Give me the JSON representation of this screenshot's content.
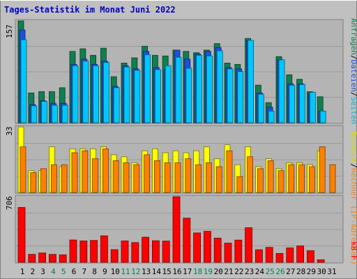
{
  "title": "Tages-Statistik im Monat Juni 2022",
  "colors": {
    "panel_bg": "#c0c0c0",
    "plot_bg": "#b4b4b4",
    "title": "#0000c0",
    "anfragen": "#0f7f4f",
    "dateien": "#1f4fdf",
    "seiten": "#00c8ff",
    "besuche": "#ffff00",
    "rechner": "#ff8000",
    "kbf": "#ff0000",
    "weekend": "#00805a",
    "weekday": "#000000"
  },
  "legend": {
    "top_parts": [
      {
        "text": "Anfragen",
        "color": "#0f7f4f"
      },
      {
        "text": "/",
        "color": "#000000"
      },
      {
        "text": "Dateien",
        "color": "#1f4fdf"
      },
      {
        "text": "/",
        "color": "#000000"
      },
      {
        "text": "Seiten",
        "color": "#00b0e0"
      }
    ],
    "mid_parts": [
      {
        "text": "Besuche",
        "color": "#d8d800"
      },
      {
        "text": "/",
        "color": "#000000"
      },
      {
        "text": "Rechner (IP-Adressen)",
        "color": "#ff8000"
      }
    ],
    "bot_parts": [
      {
        "text": "kB F",
        "color": "#ff0000"
      }
    ]
  },
  "chart_data": {
    "type": "bar",
    "categories": [
      "1",
      "2",
      "3",
      "4",
      "5",
      "6",
      "7",
      "8",
      "9",
      "10",
      "11",
      "12",
      "13",
      "14",
      "15",
      "16",
      "17",
      "18",
      "19",
      "20",
      "21",
      "22",
      "23",
      "24",
      "25",
      "26",
      "27",
      "28",
      "29",
      "30",
      "31"
    ],
    "weekend_days": [
      4,
      5,
      11,
      12,
      18,
      19,
      25,
      26
    ],
    "panels": [
      {
        "name": "requests",
        "ymax_label": "157",
        "ymax": 157,
        "series": [
          {
            "name": "Anfragen",
            "values": [
              157,
              46,
              48,
              48,
              54,
              110,
              114,
              104,
              115,
              71,
              92,
              100,
              118,
              104,
              103,
              112,
              110,
              108,
              112,
              122,
              92,
              90,
              130,
              58,
              31,
              102,
              74,
              67,
              48,
              40,
              0
            ]
          },
          {
            "name": "Dateien",
            "values": [
              143,
              28,
              34,
              30,
              30,
              90,
              98,
              90,
              95,
              56,
              88,
              83,
              110,
              85,
              82,
              112,
              98,
              106,
              110,
              116,
              85,
              83,
              127,
              46,
              24,
              97,
              60,
              60,
              45,
              18,
              0
            ]
          },
          {
            "name": "Seiten",
            "values": [
              128,
              26,
              33,
              27,
              27,
              88,
              95,
              88,
              93,
              54,
              86,
              81,
              105,
              82,
              88,
              101,
              84,
              104,
              103,
              111,
              83,
              79,
              127,
              44,
              18,
              97,
              58,
              59,
              47,
              18,
              0
            ]
          }
        ]
      },
      {
        "name": "visits",
        "ymax_label": "33",
        "ymax": 33,
        "series": [
          {
            "name": "Besuche",
            "values": [
              33,
              11,
              11,
              23,
              13,
              22,
              22,
              22,
              23,
              19,
              18,
              15,
              21,
              22,
              20,
              21,
              20,
              21,
              23,
              17,
              24,
              14,
              23,
              13,
              17,
              12,
              15,
              15,
              14,
              21,
              0
            ]
          },
          {
            "name": "Rechner",
            "values": [
              23,
              10,
              12,
              14,
              14,
              20,
              21,
              17,
              22,
              16,
              15,
              14,
              19,
              16,
              15,
              15,
              17,
              14,
              15,
              13,
              21,
              8,
              18,
              12,
              16,
              11,
              14,
              14,
              13,
              23,
              14
            ]
          }
        ]
      },
      {
        "name": "traffic",
        "ymax_label": "706",
        "ymax": 706,
        "series": [
          {
            "name": "kB F",
            "values": [
              590,
              85,
              100,
              85,
              80,
              240,
              230,
              235,
              285,
              136,
              230,
              212,
              270,
              232,
              228,
              706,
              475,
              316,
              333,
              260,
              206,
              239,
              372,
              135,
              160,
              95,
              155,
              176,
              125,
              27,
              0
            ]
          }
        ]
      }
    ]
  }
}
